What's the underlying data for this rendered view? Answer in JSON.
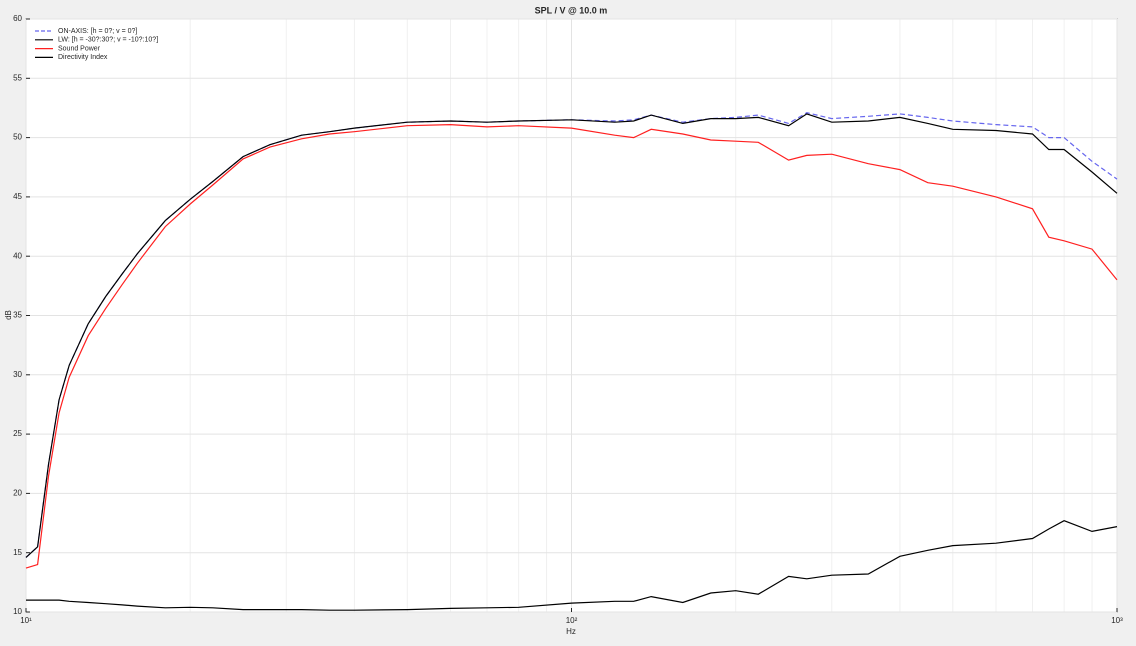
{
  "chart_data": {
    "type": "line",
    "title": "SPL / V @ 10.0 m",
    "x_label": "Hz",
    "y_label": "dB",
    "x_scale": "log",
    "grid": true,
    "legend_position": "upper-left",
    "xlim": [
      10,
      1000
    ],
    "ylim": [
      10,
      60
    ],
    "xticks": [
      {
        "value": 10,
        "label": "10¹"
      },
      {
        "value": 100,
        "label": "10²"
      },
      {
        "value": 1000,
        "label": "10³"
      }
    ],
    "yticks": [
      10,
      15,
      20,
      25,
      30,
      35,
      40,
      45,
      50,
      55,
      60
    ],
    "x": [
      10,
      10.5,
      11,
      11.5,
      12,
      13,
      14,
      15,
      16,
      18,
      20,
      22,
      25,
      28,
      32,
      36,
      40,
      50,
      60,
      70,
      80,
      100,
      120,
      130,
      140,
      160,
      180,
      200,
      220,
      250,
      270,
      300,
      350,
      400,
      450,
      500,
      600,
      700,
      750,
      800,
      900,
      1000
    ],
    "series": [
      {
        "name": "ON-AXIS: [h = 0?; v = 0?]",
        "color": "#6666ee",
        "dashed": true,
        "values": [
          14.6,
          15.5,
          22.5,
          27.9,
          30.8,
          34.3,
          36.6,
          38.5,
          40.2,
          43.0,
          44.8,
          46.3,
          48.4,
          49.4,
          50.2,
          50.5,
          50.8,
          51.3,
          51.4,
          51.3,
          51.4,
          51.5,
          51.4,
          51.5,
          51.9,
          51.3,
          51.6,
          51.7,
          51.9,
          51.2,
          52.1,
          51.6,
          51.8,
          52.0,
          51.7,
          51.4,
          51.1,
          50.9,
          50.0,
          50.0,
          48.0,
          46.5
        ]
      },
      {
        "name": "LW: [h = -30?:30?; v = -10?:10?]",
        "color": "#000000",
        "dashed": false,
        "values": [
          14.6,
          15.5,
          22.5,
          27.9,
          30.8,
          34.3,
          36.6,
          38.5,
          40.2,
          43.0,
          44.8,
          46.3,
          48.4,
          49.4,
          50.2,
          50.5,
          50.8,
          51.3,
          51.4,
          51.3,
          51.4,
          51.5,
          51.3,
          51.4,
          51.9,
          51.2,
          51.6,
          51.6,
          51.7,
          51.0,
          52.0,
          51.3,
          51.4,
          51.7,
          51.2,
          50.7,
          50.6,
          50.3,
          49.0,
          49.0,
          47.1,
          45.3
        ]
      },
      {
        "name": "Sound Power",
        "color": "#ff2020",
        "dashed": false,
        "values": [
          13.7,
          14.0,
          21.5,
          26.8,
          29.8,
          33.3,
          35.6,
          37.6,
          39.4,
          42.5,
          44.4,
          46.0,
          48.2,
          49.2,
          49.9,
          50.3,
          50.5,
          51.0,
          51.1,
          50.9,
          51.0,
          50.8,
          50.2,
          50.0,
          50.7,
          50.3,
          49.8,
          49.7,
          49.6,
          48.1,
          48.5,
          48.6,
          47.8,
          47.3,
          46.2,
          45.9,
          45.0,
          44.0,
          41.6,
          41.3,
          40.6,
          38.0
        ]
      },
      {
        "name": "Directivity Index",
        "color": "#000000",
        "dashed": false,
        "values": [
          11.0,
          11.0,
          11.0,
          11.0,
          10.9,
          10.8,
          10.7,
          10.6,
          10.5,
          10.35,
          10.4,
          10.35,
          10.2,
          10.2,
          10.2,
          10.15,
          10.15,
          10.2,
          10.3,
          10.35,
          10.4,
          10.75,
          10.9,
          10.9,
          11.3,
          10.8,
          11.6,
          11.8,
          11.5,
          13.0,
          12.8,
          13.1,
          13.2,
          14.7,
          15.2,
          15.6,
          15.8,
          16.2,
          17.0,
          17.7,
          16.8,
          17.2
        ]
      }
    ]
  }
}
